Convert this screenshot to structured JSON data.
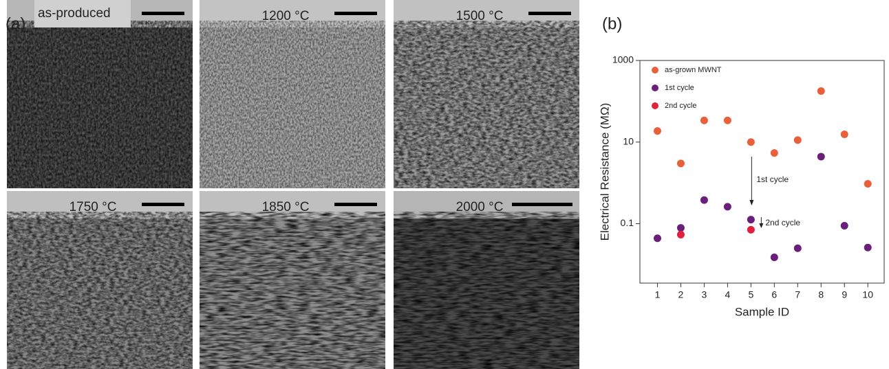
{
  "panel_a": {
    "label": "(a)",
    "images": [
      "as-produced",
      "1200 °C",
      "1500 °C",
      "1750 °C",
      "1850 °C",
      "2000 °C"
    ]
  },
  "chart_data": {
    "type": "scatter",
    "panel_label": "(b)",
    "x_label": "Sample ID",
    "y_label": "Electrical Resistance (MΩ)",
    "x": [
      1,
      2,
      3,
      4,
      5,
      6,
      7,
      8,
      9,
      10
    ],
    "series": [
      {
        "name": "as-grown MWNT",
        "color": "#e8603c",
        "values": [
          18.7,
          3.0,
          34,
          34,
          10,
          5.4,
          11.2,
          178,
          15.5,
          0.95
        ]
      },
      {
        "name": "1st cycle",
        "color": "#6a1f7a",
        "values": [
          0.044,
          0.079,
          0.38,
          0.26,
          0.126,
          0.015,
          0.025,
          4.4,
          0.089,
          0.026
        ]
      },
      {
        "name": "2nd cycle",
        "color": "#e0203c",
        "values": [
          null,
          0.054,
          null,
          null,
          0.071,
          null,
          null,
          null,
          null,
          null
        ]
      }
    ],
    "annotations": [
      "1st cycle",
      "2nd cycle"
    ],
    "xlim": [
      0.25,
      10.7
    ],
    "xticks": [
      1,
      2,
      3,
      4,
      5,
      6,
      7,
      8,
      9,
      10
    ],
    "ylim": [
      0.0035,
      1000
    ],
    "yticks": [
      0.1,
      10,
      1000
    ],
    "yscale": "log",
    "grid": false,
    "legend": "upper left"
  }
}
